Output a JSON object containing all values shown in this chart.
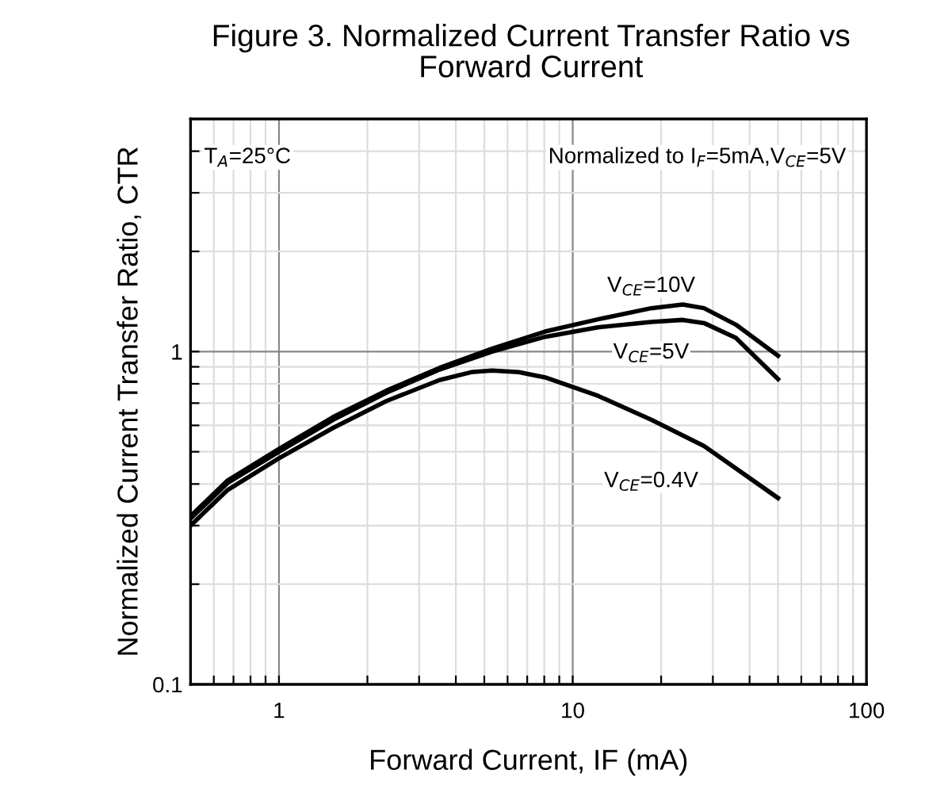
{
  "chart_data": {
    "type": "line",
    "title": "Figure 3. Normalized Current Transfer Ratio vs\nForward Current",
    "xlabel": "Forward Current, IF (mA)",
    "ylabel": "Normalized Current Transfer Ratio, CTR",
    "annotations": [
      "T$_{A}$=25°C",
      "Normalized to I$_{F}$=5mA,V$_{CE}$=5V"
    ],
    "log": "xy",
    "xlim": [
      0.5,
      100
    ],
    "ylim": [
      0.1,
      5
    ],
    "xticks": [
      {
        "value": 0.6,
        "label": null
      },
      {
        "value": 0.7,
        "label": null
      },
      {
        "value": 0.8,
        "label": null
      },
      {
        "value": 0.9,
        "label": null
      },
      1,
      {
        "value": 2,
        "label": null
      },
      {
        "value": 3,
        "label": null
      },
      {
        "value": 4,
        "label": null
      },
      {
        "value": 5,
        "label": null
      },
      {
        "value": 6,
        "label": null
      },
      {
        "value": 7,
        "label": null
      },
      {
        "value": 8,
        "label": null
      },
      {
        "value": 9,
        "label": null
      },
      10,
      {
        "value": 20,
        "label": null
      },
      {
        "value": 30,
        "label": null
      },
      {
        "value": 40,
        "label": null
      },
      {
        "value": 50,
        "label": null
      },
      {
        "value": 60,
        "label": null
      },
      {
        "value": 70,
        "label": null
      },
      {
        "value": 80,
        "label": null
      },
      {
        "value": 90,
        "label": null
      },
      100
    ],
    "yticks": [
      0.1,
      {
        "value": 0.2,
        "label": null
      },
      {
        "value": 0.3,
        "label": null
      },
      {
        "value": 0.4,
        "label": null
      },
      {
        "value": 0.5,
        "label": null
      },
      {
        "value": 0.6,
        "label": null
      },
      {
        "value": 0.7,
        "label": null
      },
      {
        "value": 0.8,
        "label": null
      },
      {
        "value": 0.9,
        "label": null
      },
      1,
      {
        "value": 2,
        "label": null
      },
      {
        "value": 3,
        "label": null
      },
      {
        "value": 4,
        "label": null
      }
    ],
    "grid": true,
    "legend": false,
    "series": [
      {
        "name": "V$_{CE}$=10V",
        "color": "#000000",
        "x": [
          0.5,
          0.669,
          1,
          1.53,
          2.32,
          3.52,
          5.32,
          8.06,
          12.2,
          18.5,
          23.7,
          28,
          35.9,
          50
        ],
        "values": [
          0.32,
          0.41,
          0.51,
          0.636,
          0.763,
          0.893,
          1.02,
          1.149,
          1.25,
          1.35,
          1.385,
          1.35,
          1.205,
          0.971
        ]
      },
      {
        "name": "V$_{CE}$=5V",
        "color": "#000000",
        "x": [
          0.5,
          0.669,
          1,
          1.53,
          2.32,
          3.52,
          5.32,
          8.06,
          12.2,
          18.5,
          23.7,
          28,
          35.9,
          50
        ],
        "values": [
          0.315,
          0.403,
          0.5,
          0.624,
          0.752,
          0.883,
          1.0,
          1.108,
          1.183,
          1.227,
          1.245,
          1.218,
          1.1,
          0.827
        ]
      },
      {
        "name": "V$_{CE}$=0.4V",
        "color": "#000000",
        "x": [
          0.5,
          0.669,
          1,
          1.53,
          2.32,
          3.52,
          4.51,
          5.32,
          6.55,
          8.06,
          12.2,
          18.5,
          28,
          50
        ],
        "values": [
          0.3,
          0.384,
          0.478,
          0.59,
          0.71,
          0.821,
          0.867,
          0.877,
          0.867,
          0.836,
          0.736,
          0.624,
          0.52,
          0.363
        ]
      }
    ]
  }
}
